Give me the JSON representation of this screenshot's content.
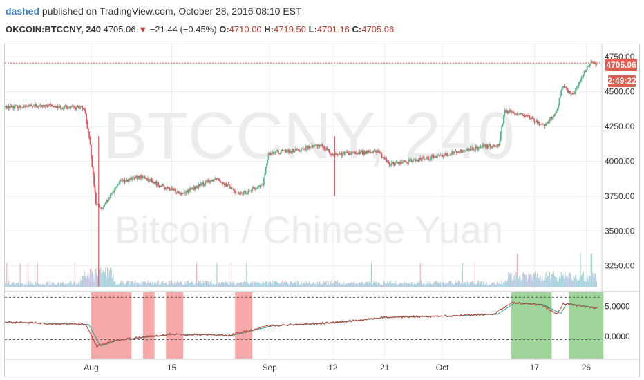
{
  "header": {
    "author": "dashed",
    "published_text": "published on TradingView.com, October 28, 2016 08:10 EST",
    "symbol": "OKCOIN:BTCCNY, 240",
    "last": "4705.06",
    "change_arrow": "▼",
    "change": "−21.44 (−0.45%)",
    "o_label": "O:",
    "o_value": "4710.00",
    "h_label": "H:",
    "h_value": "4719.50",
    "l_label": "L:",
    "l_value": "4701.16",
    "c_label": "C:",
    "c_value": "4705.06"
  },
  "watermark": {
    "symbol": "BTCCNY, 240",
    "description": "Bitcoin / Chinese Yuan"
  },
  "price_badges": {
    "last_price": "4705.06",
    "countdown": "2:49:22"
  },
  "colors": {
    "up": "#53b987",
    "down": "#eb4d5c",
    "volume_area": "#a9d4f5",
    "last_line": "#d9534f",
    "badge": "#e05c50",
    "zone_red": "#f7a8a8",
    "zone_green": "#9fd49a",
    "osc_red": "#c0392b",
    "osc_teal": "#2aa198"
  },
  "chart_data": {
    "type": "line",
    "subtype": "candlestick price with volume and oscillator panes",
    "x_tick_labels": [
      "Aug",
      "15",
      "Sep",
      "12",
      "21",
      "Oct",
      "17",
      "26"
    ],
    "x_tick_dates": [
      "2016-08-01",
      "2016-08-15",
      "2016-09-01",
      "2016-09-12",
      "2016-09-21",
      "2016-10-01",
      "2016-10-17",
      "2016-10-26"
    ],
    "x_range": [
      "2016-07-17",
      "2016-10-28"
    ],
    "price_axis": {
      "ticks": [
        3250,
        3500,
        3750,
        4000,
        4250,
        4500,
        4750
      ],
      "tick_labels": [
        "3250.00",
        "3500.00",
        "3750.00",
        "4000.00",
        "4250.00",
        "4500.00",
        "4750.00"
      ],
      "range": [
        3080,
        4790
      ]
    },
    "price_series": {
      "name": "",
      "x": [
        "2016-07-17",
        "2016-07-25",
        "2016-07-31",
        "2016-08-01",
        "2016-08-02",
        "2016-08-03",
        "2016-08-06",
        "2016-08-10",
        "2016-08-14",
        "2016-08-17",
        "2016-08-23",
        "2016-08-27",
        "2016-08-31",
        "2016-09-01",
        "2016-09-06",
        "2016-09-10",
        "2016-09-12",
        "2016-09-17",
        "2016-09-20",
        "2016-09-22",
        "2016-09-27",
        "2016-10-03",
        "2016-10-08",
        "2016-10-11",
        "2016-10-12",
        "2016-10-15",
        "2016-10-18",
        "2016-10-19",
        "2016-10-21",
        "2016-10-22",
        "2016-10-24",
        "2016-10-26",
        "2016-10-27"
      ],
      "y": [
        4390,
        4395,
        4380,
        4110,
        3700,
        3650,
        3850,
        3890,
        3810,
        3770,
        3880,
        3760,
        3830,
        4060,
        4080,
        4120,
        4050,
        4060,
        4070,
        3980,
        4010,
        4060,
        4100,
        4120,
        4360,
        4340,
        4270,
        4260,
        4350,
        4530,
        4480,
        4650,
        4705
      ]
    },
    "volume_axis_visible": false,
    "oscillator": {
      "ticks": [
        0,
        5
      ],
      "tick_labels": [
        "0.0000",
        "5.0000"
      ],
      "range": [
        -2.5,
        7.0
      ],
      "levels": [
        -0.5,
        6.5
      ],
      "series": [
        {
          "name": "",
          "x": [
            "2016-07-17",
            "2016-07-31",
            "2016-08-01",
            "2016-08-02",
            "2016-08-05",
            "2016-08-15",
            "2016-08-25",
            "2016-09-01",
            "2016-09-12",
            "2016-09-21",
            "2016-10-01",
            "2016-10-10",
            "2016-10-13",
            "2016-10-18",
            "2016-10-21",
            "2016-10-22",
            "2016-10-27"
          ],
          "y": [
            2.4,
            2.0,
            0.2,
            -1.6,
            -0.6,
            0.4,
            0.2,
            1.8,
            2.3,
            3.2,
            3.4,
            3.7,
            5.6,
            5.3,
            3.8,
            5.5,
            4.8
          ]
        }
      ]
    },
    "zones": [
      {
        "color": "red",
        "from": "2016-08-01",
        "to": "2016-08-07"
      },
      {
        "color": "red",
        "from": "2016-08-10",
        "to": "2016-08-10"
      },
      {
        "color": "red",
        "from": "2016-08-11",
        "to": "2016-08-11"
      },
      {
        "color": "red",
        "from": "2016-08-14",
        "to": "2016-08-16"
      },
      {
        "color": "red",
        "from": "2016-08-26",
        "to": "2016-08-28"
      },
      {
        "color": "green",
        "from": "2016-10-13",
        "to": "2016-10-19"
      },
      {
        "color": "green",
        "from": "2016-10-23",
        "to": "2016-10-28"
      }
    ],
    "last_price": 4705.06,
    "grid": true
  }
}
